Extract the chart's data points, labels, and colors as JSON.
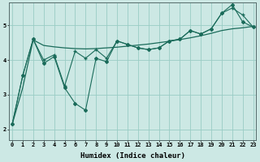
{
  "xlabel": "Humidex (Indice chaleur)",
  "background_color": "#cce8e4",
  "grid_color": "#99ccc4",
  "line_color": "#1a6b5a",
  "x_ticks": [
    0,
    1,
    2,
    3,
    4,
    5,
    6,
    7,
    8,
    9,
    10,
    11,
    12,
    13,
    14,
    15,
    16,
    17,
    18,
    19,
    20,
    21,
    22,
    23
  ],
  "y_ticks": [
    2,
    3,
    4,
    5
  ],
  "ylim": [
    1.7,
    5.65
  ],
  "xlim": [
    -0.3,
    23.3
  ],
  "smooth_y": [
    2.15,
    3.2,
    4.58,
    4.42,
    4.38,
    4.35,
    4.33,
    4.32,
    4.33,
    4.35,
    4.37,
    4.4,
    4.43,
    4.46,
    4.5,
    4.54,
    4.59,
    4.64,
    4.7,
    4.77,
    4.85,
    4.9,
    4.93,
    4.97
  ],
  "jagged_y": [
    2.15,
    3.55,
    4.6,
    3.9,
    4.1,
    3.2,
    2.75,
    2.55,
    4.05,
    3.95,
    4.55,
    4.45,
    4.35,
    4.3,
    4.35,
    4.55,
    4.6,
    4.85,
    4.75,
    4.9,
    5.35,
    5.6,
    5.1,
    4.95
  ],
  "cross_y": [
    2.15,
    3.55,
    4.6,
    4.0,
    4.15,
    3.25,
    4.25,
    4.05,
    4.3,
    4.05,
    4.55,
    4.45,
    4.35,
    4.3,
    4.35,
    4.55,
    4.6,
    4.85,
    4.75,
    4.9,
    5.35,
    5.5,
    5.3,
    4.95
  ]
}
